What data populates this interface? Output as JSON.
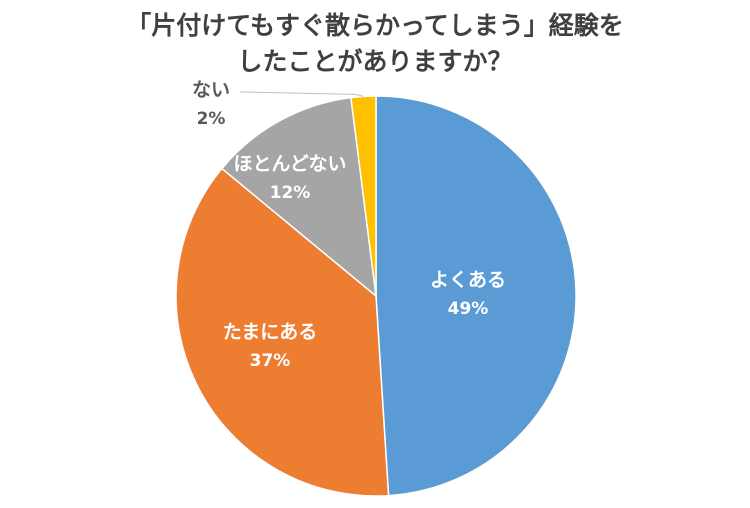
{
  "chart_data": {
    "type": "pie",
    "title_lines": [
      "「片付けてもすぐ散らかってしまう」経験を",
      "したことがありますか？"
    ],
    "slices": [
      {
        "label": "よくある",
        "value": 49,
        "value_text": "49%",
        "color": "#5b9bd5"
      },
      {
        "label": "たまにある",
        "value": 37,
        "value_text": "37%",
        "color": "#ed7d31"
      },
      {
        "label": "ほとんどない",
        "value": 12,
        "value_text": "12%",
        "color": "#a5a5a5"
      },
      {
        "label": "ない",
        "value": 2,
        "value_text": "2%",
        "color": "#ffc000"
      }
    ],
    "start_angle_deg": 0,
    "direction": "clockwise",
    "legend": "none"
  }
}
